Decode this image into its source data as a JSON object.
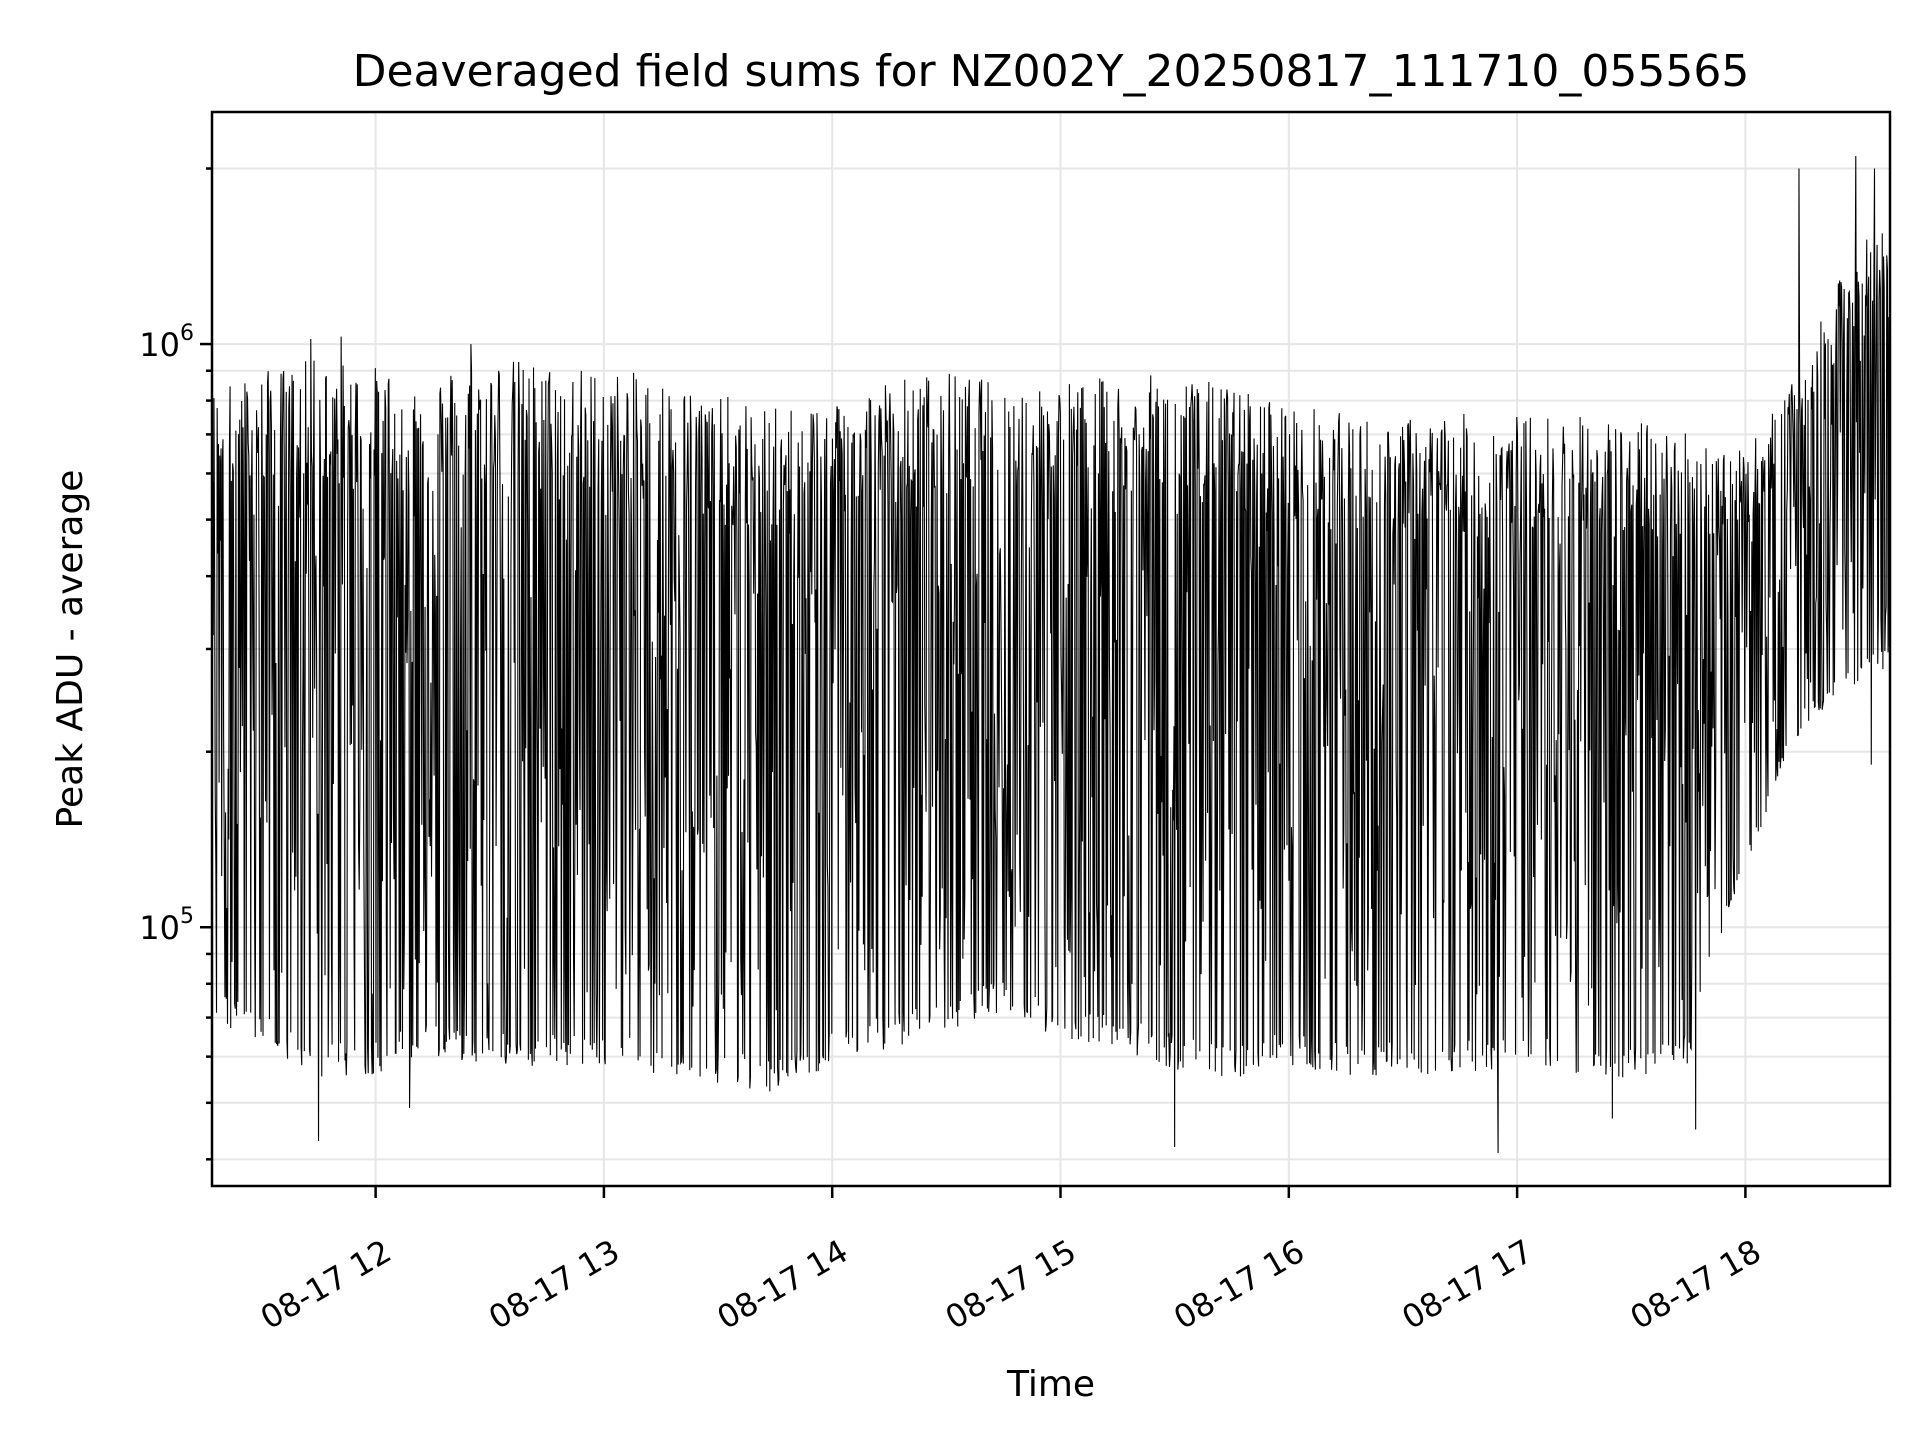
{
  "chart_data": {
    "type": "line",
    "title": "Deaveraged field sums for NZ002Y_20250817_111710_055565",
    "xlabel": "Time",
    "ylabel": "Peak ADU - average",
    "yscale": "log",
    "ylim": [
      36000,
      2500000
    ],
    "xlim": [
      "2025-08-17 11:17",
      "2025-08-17 18:38"
    ],
    "x_ticks": [
      {
        "value": "2025-08-17 12:00",
        "label": "08-17 12"
      },
      {
        "value": "2025-08-17 13:00",
        "label": "08-17 13"
      },
      {
        "value": "2025-08-17 14:00",
        "label": "08-17 14"
      },
      {
        "value": "2025-08-17 15:00",
        "label": "08-17 15"
      },
      {
        "value": "2025-08-17 16:00",
        "label": "08-17 16"
      },
      {
        "value": "2025-08-17 17:00",
        "label": "08-17 17"
      },
      {
        "value": "2025-08-17 18:00",
        "label": "08-17 18"
      }
    ],
    "y_ticks": [
      {
        "value": 100000,
        "base": "10",
        "exp": "5"
      },
      {
        "value": 1000000,
        "base": "10",
        "exp": "6"
      }
    ],
    "grid": true,
    "line_color": "#000000",
    "series": [
      {
        "envelope": [
          {
            "t": "2025-08-17 11:17",
            "high": 850000,
            "low": 70000
          },
          {
            "t": "2025-08-17 11:30",
            "high": 900000,
            "low": 62000
          },
          {
            "t": "2025-08-17 11:45",
            "high": 950000,
            "low": 55000
          },
          {
            "t": "2025-08-17 12:00",
            "high": 920000,
            "low": 56000
          },
          {
            "t": "2025-08-17 12:15",
            "high": 900000,
            "low": 60000
          },
          {
            "t": "2025-08-17 12:30",
            "high": 960000,
            "low": 58000
          },
          {
            "t": "2025-08-17 12:45",
            "high": 930000,
            "low": 57000
          },
          {
            "t": "2025-08-17 13:00",
            "high": 910000,
            "low": 58000
          },
          {
            "t": "2025-08-17 13:15",
            "high": 880000,
            "low": 56000
          },
          {
            "t": "2025-08-17 13:30",
            "high": 820000,
            "low": 54000
          },
          {
            "t": "2025-08-17 13:45",
            "high": 780000,
            "low": 52000
          },
          {
            "t": "2025-08-17 14:00",
            "high": 820000,
            "low": 58000
          },
          {
            "t": "2025-08-17 14:15",
            "high": 880000,
            "low": 62000
          },
          {
            "t": "2025-08-17 14:30",
            "high": 900000,
            "low": 66000
          },
          {
            "t": "2025-08-17 14:45",
            "high": 860000,
            "low": 72000
          },
          {
            "t": "2025-08-17 15:00",
            "high": 870000,
            "low": 63000
          },
          {
            "t": "2025-08-17 15:15",
            "high": 880000,
            "low": 62000
          },
          {
            "t": "2025-08-17 15:30",
            "high": 890000,
            "low": 57000
          },
          {
            "t": "2025-08-17 15:45",
            "high": 850000,
            "low": 55000
          },
          {
            "t": "2025-08-17 16:00",
            "high": 800000,
            "low": 58000
          },
          {
            "t": "2025-08-17 16:15",
            "high": 760000,
            "low": 55000
          },
          {
            "t": "2025-08-17 16:30",
            "high": 750000,
            "low": 56000
          },
          {
            "t": "2025-08-17 16:45",
            "high": 760000,
            "low": 56000
          },
          {
            "t": "2025-08-17 17:00",
            "high": 760000,
            "low": 57000
          },
          {
            "t": "2025-08-17 17:15",
            "high": 760000,
            "low": 56000
          },
          {
            "t": "2025-08-17 17:30",
            "high": 740000,
            "low": 55000
          },
          {
            "t": "2025-08-17 17:45",
            "high": 720000,
            "low": 58000
          },
          {
            "t": "2025-08-17 18:00",
            "high": 650000,
            "low": 120000
          },
          {
            "t": "2025-08-17 18:15",
            "high": 900000,
            "low": 220000
          },
          {
            "t": "2025-08-17 18:30",
            "high": 1500000,
            "low": 260000
          },
          {
            "t": "2025-08-17 18:38",
            "high": 1600000,
            "low": 280000
          }
        ],
        "spikes": [
          {
            "t": "2025-08-17 11:43",
            "value": 1020000
          },
          {
            "t": "2025-08-17 11:51",
            "value": 1030000
          },
          {
            "t": "2025-08-17 12:25",
            "value": 1000000
          },
          {
            "t": "2025-08-17 11:45",
            "value": 43000
          },
          {
            "t": "2025-08-17 12:09",
            "value": 49000
          },
          {
            "t": "2025-08-17 15:30",
            "value": 42000
          },
          {
            "t": "2025-08-17 16:55",
            "value": 41000
          },
          {
            "t": "2025-08-17 17:25",
            "value": 47000
          },
          {
            "t": "2025-08-17 17:47",
            "value": 45000
          },
          {
            "t": "2025-08-17 18:14",
            "value": 2000000
          },
          {
            "t": "2025-08-17 18:29",
            "value": 2100000
          },
          {
            "t": "2025-08-17 18:34",
            "value": 2000000
          },
          {
            "t": "2025-08-17 18:33",
            "value": 190000
          }
        ]
      }
    ]
  }
}
